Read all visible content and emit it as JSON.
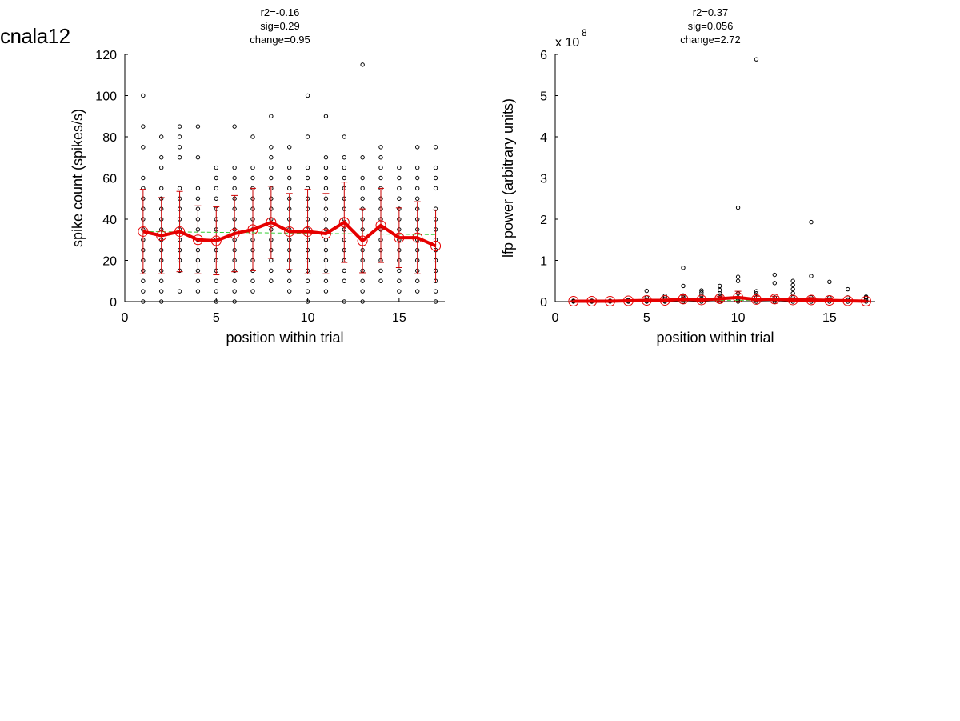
{
  "figure": {
    "title": "cnala12"
  },
  "chart_data": [
    {
      "type": "scatter",
      "title_lines": [
        "r2=-0.16",
        "sig=0.29",
        "change=0.95"
      ],
      "xlabel": "position within trial",
      "ylabel": "spike count (spikes/s)",
      "xlim": [
        0,
        17.5
      ],
      "ylim": [
        0,
        120
      ],
      "xticks": [
        0,
        5,
        10,
        15
      ],
      "yticks": [
        0,
        20,
        40,
        60,
        80,
        100,
        120
      ],
      "exponent_label": "",
      "grid": false,
      "colors": {
        "points": "#000000",
        "mean": "#e60000",
        "errorbar": "#cc0000",
        "fit": "#33cc33"
      },
      "points": [
        {
          "x": 1,
          "values": [
            0,
            5,
            10,
            15,
            20,
            25,
            30,
            35,
            40,
            45,
            50,
            55,
            60,
            75,
            85,
            100
          ]
        },
        {
          "x": 2,
          "values": [
            0,
            5,
            10,
            15,
            20,
            25,
            30,
            35,
            40,
            45,
            50,
            55,
            65,
            70,
            80
          ]
        },
        {
          "x": 3,
          "values": [
            5,
            15,
            20,
            25,
            30,
            35,
            40,
            45,
            50,
            55,
            70,
            75,
            80,
            85
          ]
        },
        {
          "x": 4,
          "values": [
            5,
            10,
            15,
            20,
            25,
            30,
            35,
            40,
            45,
            50,
            55,
            70,
            85
          ]
        },
        {
          "x": 5,
          "values": [
            0,
            5,
            10,
            15,
            20,
            25,
            30,
            35,
            40,
            45,
            50,
            55,
            60,
            65
          ]
        },
        {
          "x": 6,
          "values": [
            0,
            5,
            10,
            15,
            20,
            25,
            30,
            35,
            40,
            45,
            50,
            55,
            60,
            65,
            85
          ]
        },
        {
          "x": 7,
          "values": [
            5,
            10,
            15,
            20,
            25,
            30,
            35,
            40,
            45,
            50,
            55,
            60,
            65,
            80
          ]
        },
        {
          "x": 8,
          "values": [
            10,
            15,
            20,
            25,
            30,
            35,
            40,
            45,
            50,
            55,
            60,
            65,
            70,
            75,
            90
          ]
        },
        {
          "x": 9,
          "values": [
            5,
            10,
            15,
            20,
            25,
            30,
            35,
            40,
            45,
            50,
            55,
            60,
            65,
            75
          ]
        },
        {
          "x": 10,
          "values": [
            0,
            5,
            10,
            15,
            20,
            25,
            30,
            35,
            40,
            45,
            50,
            55,
            60,
            65,
            80,
            100
          ]
        },
        {
          "x": 11,
          "values": [
            5,
            10,
            15,
            20,
            25,
            30,
            35,
            40,
            45,
            50,
            55,
            60,
            65,
            70,
            90
          ]
        },
        {
          "x": 12,
          "values": [
            0,
            10,
            15,
            20,
            25,
            30,
            35,
            40,
            45,
            50,
            55,
            60,
            65,
            70,
            80
          ]
        },
        {
          "x": 13,
          "values": [
            0,
            5,
            10,
            15,
            20,
            25,
            30,
            35,
            40,
            45,
            50,
            55,
            60,
            70,
            115
          ]
        },
        {
          "x": 14,
          "values": [
            10,
            15,
            20,
            25,
            30,
            35,
            40,
            45,
            50,
            55,
            60,
            65,
            70,
            75
          ]
        },
        {
          "x": 15,
          "values": [
            5,
            10,
            15,
            20,
            25,
            30,
            35,
            40,
            45,
            50,
            55,
            60,
            65
          ]
        },
        {
          "x": 16,
          "values": [
            5,
            10,
            15,
            20,
            25,
            30,
            35,
            40,
            45,
            50,
            55,
            60,
            65,
            75
          ]
        },
        {
          "x": 17,
          "values": [
            0,
            5,
            10,
            15,
            20,
            25,
            30,
            35,
            40,
            45,
            55,
            60,
            65,
            75
          ]
        }
      ],
      "mean": {
        "x": [
          1,
          2,
          3,
          4,
          5,
          6,
          7,
          8,
          9,
          10,
          11,
          12,
          13,
          14,
          15,
          16,
          17
        ],
        "values": [
          34,
          32,
          34,
          30,
          29.5,
          33,
          35,
          38.5,
          34,
          34,
          33,
          38.5,
          29.5,
          37,
          31,
          31,
          27
        ],
        "err": [
          20.5,
          18.5,
          19.5,
          16.5,
          16.5,
          18.5,
          20,
          17.5,
          18.5,
          20.5,
          19.5,
          19.5,
          15.5,
          18,
          14.5,
          17.5,
          17.5
        ]
      },
      "fit": {
        "x": [
          1,
          17
        ],
        "values": [
          34,
          32.5
        ]
      }
    },
    {
      "type": "scatter",
      "title_lines": [
        "r2=0.37",
        "sig=0.056",
        "change=2.72"
      ],
      "xlabel": "position within trial",
      "ylabel": "lfp power (arbitrary units)",
      "xlim": [
        0,
        17.5
      ],
      "ylim": [
        0,
        6
      ],
      "xticks": [
        0,
        5,
        10,
        15
      ],
      "yticks": [
        0,
        1,
        2,
        3,
        4,
        5,
        6
      ],
      "exponent_label": "x 10",
      "exponent_power": "8",
      "grid": false,
      "colors": {
        "points": "#000000",
        "mean": "#e60000",
        "errorbar": "#cc0000",
        "fit": "#33cc33"
      },
      "points": [
        {
          "x": 1,
          "values": [
            0,
            0.01,
            0.02
          ]
        },
        {
          "x": 2,
          "values": [
            0,
            0.01,
            0.02
          ]
        },
        {
          "x": 3,
          "values": [
            0,
            0.01,
            0.02
          ]
        },
        {
          "x": 4,
          "values": [
            0,
            0.02,
            0.04
          ]
        },
        {
          "x": 5,
          "values": [
            0,
            0.02,
            0.05,
            0.1,
            0.26
          ]
        },
        {
          "x": 6,
          "values": [
            0,
            0.02,
            0.05,
            0.1,
            0.14
          ]
        },
        {
          "x": 7,
          "values": [
            0,
            0.05,
            0.1,
            0.15,
            0.38,
            0.82
          ]
        },
        {
          "x": 8,
          "values": [
            0,
            0.03,
            0.08,
            0.15,
            0.22,
            0.27
          ]
        },
        {
          "x": 9,
          "values": [
            0,
            0.05,
            0.1,
            0.15,
            0.2,
            0.28,
            0.38
          ]
        },
        {
          "x": 10,
          "values": [
            0,
            0.05,
            0.1,
            0.2,
            0.5,
            0.6,
            2.28
          ]
        },
        {
          "x": 11,
          "values": [
            0,
            0.05,
            0.1,
            0.2,
            0.25,
            5.88
          ]
        },
        {
          "x": 12,
          "values": [
            0,
            0.05,
            0.1,
            0.45,
            0.65
          ]
        },
        {
          "x": 13,
          "values": [
            0,
            0.05,
            0.1,
            0.2,
            0.3,
            0.4,
            0.5
          ]
        },
        {
          "x": 14,
          "values": [
            0,
            0.05,
            0.1,
            0.62,
            1.93
          ]
        },
        {
          "x": 15,
          "values": [
            0,
            0.05,
            0.1,
            0.48
          ]
        },
        {
          "x": 16,
          "values": [
            0,
            0.05,
            0.1,
            0.3
          ]
        },
        {
          "x": 17,
          "values": [
            0,
            0.05,
            0.1,
            0.12
          ]
        }
      ],
      "mean": {
        "x": [
          1,
          2,
          3,
          4,
          5,
          6,
          7,
          8,
          9,
          10,
          11,
          12,
          13,
          14,
          15,
          16,
          17
        ],
        "values": [
          0.01,
          0.01,
          0.01,
          0.02,
          0.03,
          0.03,
          0.06,
          0.04,
          0.07,
          0.1,
          0.05,
          0.06,
          0.04,
          0.04,
          0.03,
          0.02,
          0.01
        ],
        "err": [
          0.01,
          0.01,
          0.01,
          0.02,
          0.03,
          0.03,
          0.1,
          0.04,
          0.06,
          0.15,
          0.08,
          0.07,
          0.05,
          0.06,
          0.04,
          0.02,
          0.01
        ]
      },
      "fit": {
        "x": [
          1,
          17
        ],
        "values": [
          0.02,
          0.04
        ]
      }
    }
  ]
}
